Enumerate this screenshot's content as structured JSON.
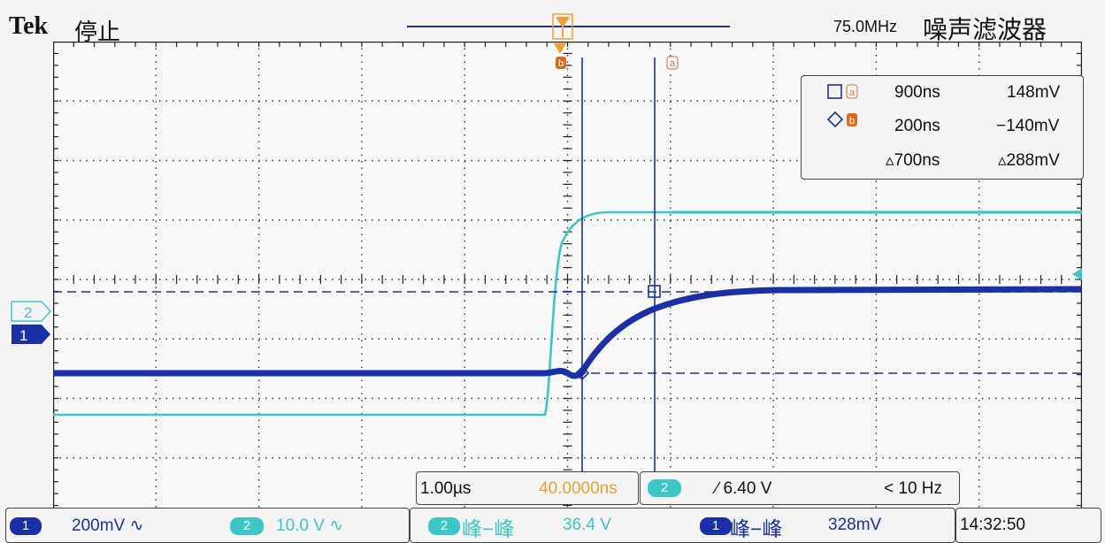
{
  "header": {
    "brand": "Tek",
    "status": "停止",
    "bandwidth": "75.0MHz",
    "filter": "噪声滤波器"
  },
  "cursors": {
    "a_label": "a",
    "b_label": "b",
    "a_time": "900ns",
    "a_volt": "148mV",
    "b_time": "200ns",
    "b_volt": "−140mV",
    "delta_time": "▵700ns",
    "delta_volt": "▵288mV"
  },
  "channel_markers": {
    "ch2": "2",
    "ch1": "1"
  },
  "timebase": {
    "scale": "1.00µs",
    "position": "40.0000ns"
  },
  "trigger": {
    "source": "2",
    "level": "∕ 6.40 V",
    "freq": "< 10 Hz"
  },
  "bottom": {
    "ch1_num": "1",
    "ch1_scale": "200mV ∿",
    "ch2_num": "2",
    "ch2_scale": "10.0 V  ∿",
    "meas2_num": "2",
    "meas2_type": "峰−峰",
    "meas2_value": "36.4 V",
    "meas1_num": "1",
    "meas1_type": "峰−峰",
    "meas1_value": "328mV",
    "clock": "14:32:50"
  },
  "colors": {
    "ch1": "#1b2fa8",
    "ch2": "#3cc7c6",
    "cursor": "#1b2fa8",
    "trigger": "#f0a030",
    "cursor_marker": "#e06a20"
  }
}
